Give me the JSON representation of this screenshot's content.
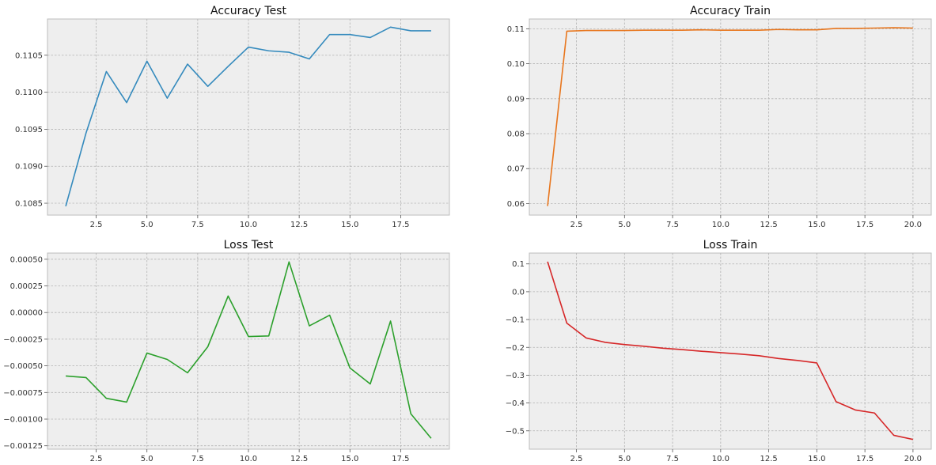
{
  "chart_data": [
    {
      "type": "line",
      "title": "Accuracy Test",
      "color": "#348abd",
      "x": [
        1,
        2,
        3,
        4,
        5,
        6,
        7,
        8,
        9,
        10,
        11,
        12,
        13,
        14,
        15,
        16,
        17,
        18,
        19
      ],
      "values": [
        0.10846,
        0.10945,
        0.11028,
        0.10986,
        0.11042,
        0.10992,
        0.11038,
        0.11008,
        0.11035,
        0.11061,
        0.11056,
        0.11054,
        0.11045,
        0.11078,
        0.11078,
        0.11074,
        0.11088,
        0.11083,
        0.11083
      ],
      "xlim": [
        0.1,
        19.9
      ],
      "ylim": [
        0.10834,
        0.11099
      ],
      "xticks": [
        2.5,
        5.0,
        7.5,
        10.0,
        12.5,
        15.0,
        17.5
      ],
      "xtick_labels": [
        "2.5",
        "5.0",
        "7.5",
        "10.0",
        "12.5",
        "15.0",
        "17.5"
      ],
      "yticks": [
        0.1085,
        0.109,
        0.1095,
        0.11,
        0.1105
      ],
      "ytick_labels": [
        "0.1085",
        "0.1090",
        "0.1095",
        "0.1100",
        "0.1105"
      ],
      "grid": true
    },
    {
      "type": "line",
      "title": "Accuracy Train",
      "color": "#e8761d",
      "x": [
        1,
        2,
        3,
        4,
        5,
        6,
        7,
        8,
        9,
        10,
        11,
        12,
        13,
        14,
        15,
        16,
        17,
        18,
        19,
        20
      ],
      "values": [
        0.0593,
        0.1093,
        0.1095,
        0.1095,
        0.1095,
        0.1096,
        0.1096,
        0.1096,
        0.1097,
        0.1096,
        0.1096,
        0.1096,
        0.1098,
        0.1097,
        0.1097,
        0.1101,
        0.1101,
        0.1102,
        0.1103,
        0.1102
      ],
      "xlim": [
        0.05,
        20.95
      ],
      "ylim": [
        0.0567,
        0.1128
      ],
      "xticks": [
        2.5,
        5.0,
        7.5,
        10.0,
        12.5,
        15.0,
        17.5,
        20.0
      ],
      "xtick_labels": [
        "2.5",
        "5.0",
        "7.5",
        "10.0",
        "12.5",
        "15.0",
        "17.5",
        "20.0"
      ],
      "yticks": [
        0.06,
        0.07,
        0.08,
        0.09,
        0.1,
        0.11
      ],
      "ytick_labels": [
        "0.06",
        "0.07",
        "0.08",
        "0.09",
        "0.10",
        "0.11"
      ],
      "grid": true
    },
    {
      "type": "line",
      "title": "Loss Test",
      "color": "#2ca02c",
      "x": [
        1,
        2,
        3,
        4,
        5,
        6,
        7,
        8,
        9,
        10,
        11,
        12,
        13,
        14,
        15,
        16,
        17,
        18,
        19
      ],
      "values": [
        -0.000595,
        -0.00061,
        -0.000805,
        -0.00084,
        -0.00038,
        -0.00044,
        -0.000565,
        -0.00032,
        0.000155,
        -0.000225,
        -0.00022,
        0.000475,
        -0.000125,
        -2.5e-05,
        -0.00052,
        -0.00067,
        -8e-05,
        -0.00095,
        -0.00118
      ],
      "xlim": [
        0.1,
        19.9
      ],
      "ylim": [
        -0.001282,
        0.000558
      ],
      "xticks": [
        2.5,
        5.0,
        7.5,
        10.0,
        12.5,
        15.0,
        17.5
      ],
      "xtick_labels": [
        "2.5",
        "5.0",
        "7.5",
        "10.0",
        "12.5",
        "15.0",
        "17.5"
      ],
      "yticks": [
        -0.00125,
        -0.001,
        -0.00075,
        -0.0005,
        -0.00025,
        0,
        0.00025,
        0.0005
      ],
      "ytick_labels": [
        "−0.00125",
        "−0.00100",
        "−0.00075",
        "−0.00050",
        "−0.00025",
        "0.00000",
        "0.00025",
        "0.00050"
      ],
      "grid": true
    },
    {
      "type": "line",
      "title": "Loss Train",
      "color": "#d62728",
      "x": [
        1,
        2,
        3,
        4,
        5,
        6,
        7,
        8,
        9,
        10,
        11,
        12,
        13,
        14,
        15,
        16,
        17,
        18,
        19,
        20
      ],
      "values": [
        0.108,
        -0.113,
        -0.166,
        -0.182,
        -0.19,
        -0.196,
        -0.203,
        -0.208,
        -0.214,
        -0.219,
        -0.224,
        -0.23,
        -0.24,
        -0.247,
        -0.256,
        -0.395,
        -0.425,
        -0.436,
        -0.516,
        -0.531
      ],
      "xlim": [
        0.05,
        20.95
      ],
      "ylim": [
        -0.566,
        0.139
      ],
      "xticks": [
        2.5,
        5.0,
        7.5,
        10.0,
        12.5,
        15.0,
        17.5,
        20.0
      ],
      "xtick_labels": [
        "2.5",
        "5.0",
        "7.5",
        "10.0",
        "12.5",
        "15.0",
        "17.5",
        "20.0"
      ],
      "yticks": [
        -0.5,
        -0.4,
        -0.3,
        -0.2,
        -0.1,
        0.0,
        0.1
      ],
      "ytick_labels": [
        "−0.5",
        "−0.4",
        "−0.3",
        "−0.2",
        "−0.1",
        "0.0",
        "0.1"
      ],
      "grid": true
    }
  ]
}
